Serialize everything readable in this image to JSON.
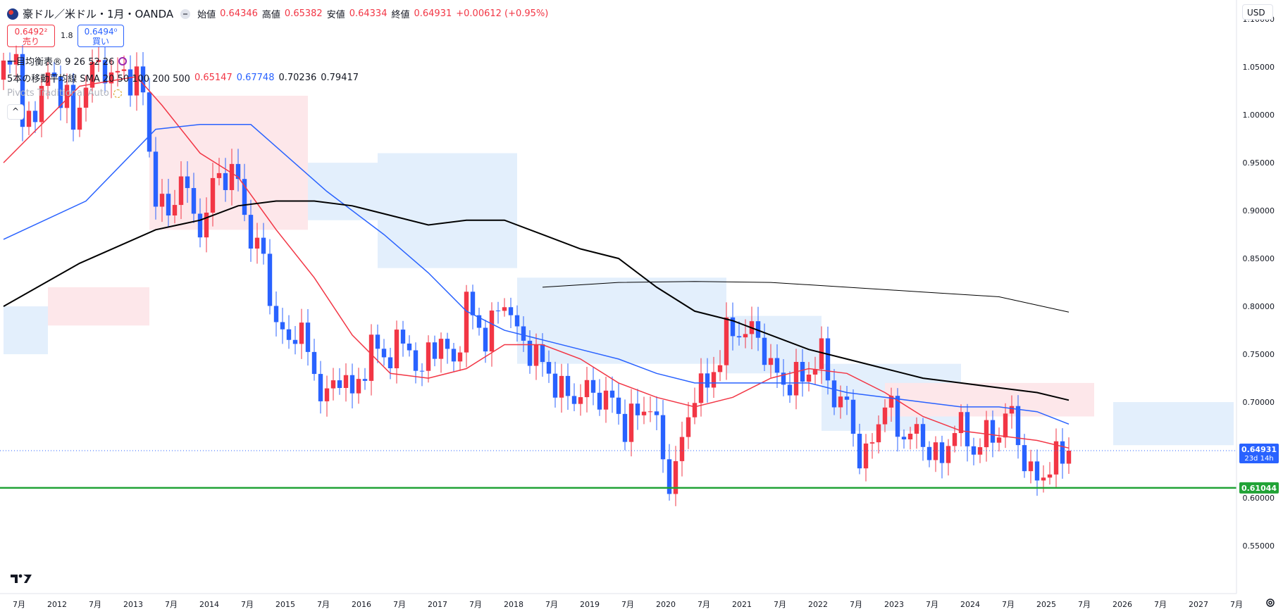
{
  "header": {
    "symbol": "豪ドル／米ドル・1月・OANDA",
    "open_label": "始値",
    "open": "0.64346",
    "high_label": "高値",
    "high": "0.65382",
    "low_label": "安値",
    "low": "0.64334",
    "close_label": "終値",
    "close": "0.64931",
    "change": "+0.00612 (+0.95%)",
    "sell_price": "0.6492²",
    "sell_label": "売り",
    "buy_price": "0.6494⁰",
    "buy_label": "買い",
    "spread": "1.8",
    "currency_button": "USD"
  },
  "indicators": {
    "ichimoku": "一目均衡表® 9 26 52 26",
    "ma_label": "5本の移動平均線 SMA 20 50 100 200 500",
    "ma_values": [
      "0.65147",
      "0.67748",
      "0.70236",
      "0.79417"
    ],
    "pivot": "Pivots Traditional Auto"
  },
  "colors": {
    "up": "#f23645",
    "down": "#2962ff",
    "ma20": "#f23645",
    "ma50": "#2962ff",
    "ma100": "#000000",
    "ma200": "#000000",
    "kumo_bull": "#fde7ea",
    "kumo_bear": "#e3effc",
    "support": "#21a336"
  },
  "chart_data": {
    "type": "candlestick",
    "title": "豪ドル／米ドル・1月・OANDA",
    "ylim": [
      0.5,
      1.12
    ],
    "y_ticks": [
      0.55,
      0.6,
      0.65,
      0.7,
      0.75,
      0.8,
      0.85,
      0.9,
      0.95,
      1.0,
      1.05,
      1.1
    ],
    "x_ticks": [
      "7月",
      "2012",
      "7月",
      "2013",
      "7月",
      "2014",
      "7月",
      "2015",
      "7月",
      "2016",
      "7月",
      "2017",
      "7月",
      "2018",
      "7月",
      "2019",
      "7月",
      "2020",
      "7月",
      "2021",
      "7月",
      "2022",
      "7月",
      "2023",
      "7月",
      "2024",
      "7月",
      "2025",
      "7月",
      "2026",
      "7月",
      "2027",
      "7月"
    ],
    "last_price_label": "0.64931",
    "countdown_label": "23d 14h",
    "support_label": "0.61044",
    "support_level": 0.61044,
    "last_price": 0.64931,
    "waypoints": [
      [
        "2011-06",
        1.05
      ],
      [
        "2011-08",
        1.07
      ],
      [
        "2011-09",
        0.98
      ],
      [
        "2011-11",
        1.01
      ],
      [
        "2012-01",
        1.04
      ],
      [
        "2012-04",
        1.02
      ],
      [
        "2012-05",
        0.98
      ],
      [
        "2012-07",
        1.04
      ],
      [
        "2012-09",
        1.05
      ],
      [
        "2012-12",
        1.04
      ],
      [
        "2013-03",
        1.04
      ],
      [
        "2013-04",
        1.02
      ],
      [
        "2013-05",
        0.96
      ],
      [
        "2013-06",
        0.92
      ],
      [
        "2013-08",
        0.89
      ],
      [
        "2013-10",
        0.94
      ],
      [
        "2013-12",
        0.89
      ],
      [
        "2014-02",
        0.89
      ],
      [
        "2014-03",
        0.93
      ],
      [
        "2014-05",
        0.94
      ],
      [
        "2014-07",
        0.93
      ],
      [
        "2014-09",
        0.87
      ],
      [
        "2014-11",
        0.85
      ],
      [
        "2015-01",
        0.78
      ],
      [
        "2015-03",
        0.76
      ],
      [
        "2015-04",
        0.78
      ],
      [
        "2015-05",
        0.77
      ],
      [
        "2015-07",
        0.73
      ],
      [
        "2015-09",
        0.7
      ],
      [
        "2015-10",
        0.72
      ],
      [
        "2015-12",
        0.73
      ],
      [
        "2016-01",
        0.7
      ],
      [
        "2016-04",
        0.76
      ],
      [
        "2016-06",
        0.745
      ],
      [
        "2016-08",
        0.76
      ],
      [
        "2016-10",
        0.76
      ],
      [
        "2016-12",
        0.72
      ],
      [
        "2017-01",
        0.76
      ],
      [
        "2017-03",
        0.76
      ],
      [
        "2017-05",
        0.74
      ],
      [
        "2017-07",
        0.8
      ],
      [
        "2017-09",
        0.78
      ],
      [
        "2017-10",
        0.765
      ],
      [
        "2018-01",
        0.81
      ],
      [
        "2018-03",
        0.77
      ],
      [
        "2018-05",
        0.755
      ],
      [
        "2018-07",
        0.74
      ],
      [
        "2018-10",
        0.71
      ],
      [
        "2018-12",
        0.705
      ],
      [
        "2019-01",
        0.71
      ],
      [
        "2019-03",
        0.71
      ],
      [
        "2019-06",
        0.7
      ],
      [
        "2019-08",
        0.675
      ],
      [
        "2019-12",
        0.7
      ],
      [
        "2020-01",
        0.67
      ],
      [
        "2020-03",
        0.615
      ],
      [
        "2020-05",
        0.655
      ],
      [
        "2020-07",
        0.715
      ],
      [
        "2020-09",
        0.715
      ],
      [
        "2020-12",
        0.77
      ],
      [
        "2021-02",
        0.775
      ],
      [
        "2021-05",
        0.77
      ],
      [
        "2021-07",
        0.735
      ],
      [
        "2021-09",
        0.72
      ],
      [
        "2021-12",
        0.725
      ],
      [
        "2022-03",
        0.75
      ],
      [
        "2022-05",
        0.705
      ],
      [
        "2022-07",
        0.695
      ],
      [
        "2022-09",
        0.645
      ],
      [
        "2022-10",
        0.64
      ],
      [
        "2022-12",
        0.68
      ],
      [
        "2023-01",
        0.705
      ],
      [
        "2023-03",
        0.67
      ],
      [
        "2023-06",
        0.665
      ],
      [
        "2023-09",
        0.645
      ],
      [
        "2023-10",
        0.635
      ],
      [
        "2023-12",
        0.68
      ],
      [
        "2024-03",
        0.65
      ],
      [
        "2024-05",
        0.665
      ],
      [
        "2024-06",
        0.665
      ],
      [
        "2024-08",
        0.68
      ],
      [
        "2024-09",
        0.69
      ],
      [
        "2024-10",
        0.66
      ],
      [
        "2024-12",
        0.62
      ],
      [
        "2025-02",
        0.625
      ],
      [
        "2025-04",
        0.64
      ],
      [
        "2025-06",
        0.649
      ]
    ],
    "ma20": [
      [
        "2011-06",
        0.95
      ],
      [
        "2012-06",
        1.03
      ],
      [
        "2013-03",
        1.04
      ],
      [
        "2013-07",
        1.01
      ],
      [
        "2014-01",
        0.96
      ],
      [
        "2014-07",
        0.935
      ],
      [
        "2015-01",
        0.88
      ],
      [
        "2015-07",
        0.83
      ],
      [
        "2016-01",
        0.77
      ],
      [
        "2016-07",
        0.73
      ],
      [
        "2017-01",
        0.725
      ],
      [
        "2017-07",
        0.735
      ],
      [
        "2018-01",
        0.76
      ],
      [
        "2018-07",
        0.76
      ],
      [
        "2019-01",
        0.745
      ],
      [
        "2019-07",
        0.72
      ],
      [
        "2020-01",
        0.705
      ],
      [
        "2020-07",
        0.695
      ],
      [
        "2021-01",
        0.705
      ],
      [
        "2021-07",
        0.725
      ],
      [
        "2022-01",
        0.735
      ],
      [
        "2022-07",
        0.73
      ],
      [
        "2023-01",
        0.71
      ],
      [
        "2023-07",
        0.685
      ],
      [
        "2024-01",
        0.67
      ],
      [
        "2024-07",
        0.665
      ],
      [
        "2025-01",
        0.66
      ],
      [
        "2025-06",
        0.652
      ]
    ],
    "ma50": [
      [
        "2011-06",
        0.87
      ],
      [
        "2012-07",
        0.91
      ],
      [
        "2013-06",
        0.985
      ],
      [
        "2014-01",
        0.99
      ],
      [
        "2014-09",
        0.99
      ],
      [
        "2015-03",
        0.955
      ],
      [
        "2015-09",
        0.92
      ],
      [
        "2016-06",
        0.875
      ],
      [
        "2017-01",
        0.835
      ],
      [
        "2017-07",
        0.795
      ],
      [
        "2018-01",
        0.775
      ],
      [
        "2018-07",
        0.765
      ],
      [
        "2019-01",
        0.755
      ],
      [
        "2019-07",
        0.745
      ],
      [
        "2020-01",
        0.73
      ],
      [
        "2020-07",
        0.72
      ],
      [
        "2021-01",
        0.72
      ],
      [
        "2021-07",
        0.72
      ],
      [
        "2022-01",
        0.72
      ],
      [
        "2022-07",
        0.71
      ],
      [
        "2023-01",
        0.705
      ],
      [
        "2023-07",
        0.7
      ],
      [
        "2024-01",
        0.695
      ],
      [
        "2024-07",
        0.695
      ],
      [
        "2025-01",
        0.69
      ],
      [
        "2025-06",
        0.677
      ]
    ],
    "ma100": [
      [
        "2011-06",
        0.8
      ],
      [
        "2012-06",
        0.845
      ],
      [
        "2013-06",
        0.88
      ],
      [
        "2014-01",
        0.89
      ],
      [
        "2014-07",
        0.905
      ],
      [
        "2015-01",
        0.91
      ],
      [
        "2015-07",
        0.91
      ],
      [
        "2016-01",
        0.905
      ],
      [
        "2016-07",
        0.895
      ],
      [
        "2017-01",
        0.885
      ],
      [
        "2017-07",
        0.89
      ],
      [
        "2018-01",
        0.89
      ],
      [
        "2018-07",
        0.875
      ],
      [
        "2019-01",
        0.86
      ],
      [
        "2019-07",
        0.85
      ],
      [
        "2020-01",
        0.82
      ],
      [
        "2020-07",
        0.795
      ],
      [
        "2021-01",
        0.785
      ],
      [
        "2021-07",
        0.77
      ],
      [
        "2022-01",
        0.755
      ],
      [
        "2022-07",
        0.745
      ],
      [
        "2023-01",
        0.735
      ],
      [
        "2023-07",
        0.725
      ],
      [
        "2024-01",
        0.72
      ],
      [
        "2024-07",
        0.715
      ],
      [
        "2025-01",
        0.71
      ],
      [
        "2025-06",
        0.702
      ]
    ],
    "ma200": [
      [
        "2018-07",
        0.82
      ],
      [
        "2019-07",
        0.825
      ],
      [
        "2020-07",
        0.826
      ],
      [
        "2021-07",
        0.825
      ],
      [
        "2022-07",
        0.82
      ],
      [
        "2023-07",
        0.815
      ],
      [
        "2024-07",
        0.81
      ],
      [
        "2025-06",
        0.794
      ]
    ],
    "kumo": [
      {
        "from": "2011-06",
        "to": "2012-01",
        "top": 0.8,
        "bottom": 0.75,
        "color": "bear"
      },
      {
        "from": "2012-01",
        "to": "2013-05",
        "top": 0.82,
        "bottom": 0.78,
        "color": "bull"
      },
      {
        "from": "2013-05",
        "to": "2015-06",
        "top": 1.02,
        "bottom": 0.88,
        "color": "bull"
      },
      {
        "from": "2015-06",
        "to": "2016-05",
        "top": 0.95,
        "bottom": 0.89,
        "color": "bear"
      },
      {
        "from": "2016-05",
        "to": "2018-03",
        "top": 0.96,
        "bottom": 0.84,
        "color": "bear"
      },
      {
        "from": "2018-03",
        "to": "2020-12",
        "top": 0.83,
        "bottom": 0.74,
        "color": "bear"
      },
      {
        "from": "2020-12",
        "to": "2022-03",
        "top": 0.79,
        "bottom": 0.73,
        "color": "bear"
      },
      {
        "from": "2022-03",
        "to": "2024-01",
        "top": 0.74,
        "bottom": 0.67,
        "color": "bear"
      },
      {
        "from": "2023-01",
        "to": "2025-10",
        "top": 0.72,
        "bottom": 0.685,
        "color": "bull"
      },
      {
        "from": "2026-01",
        "to": "2027-08",
        "top": 0.7,
        "bottom": 0.655,
        "color": "bear"
      }
    ]
  }
}
